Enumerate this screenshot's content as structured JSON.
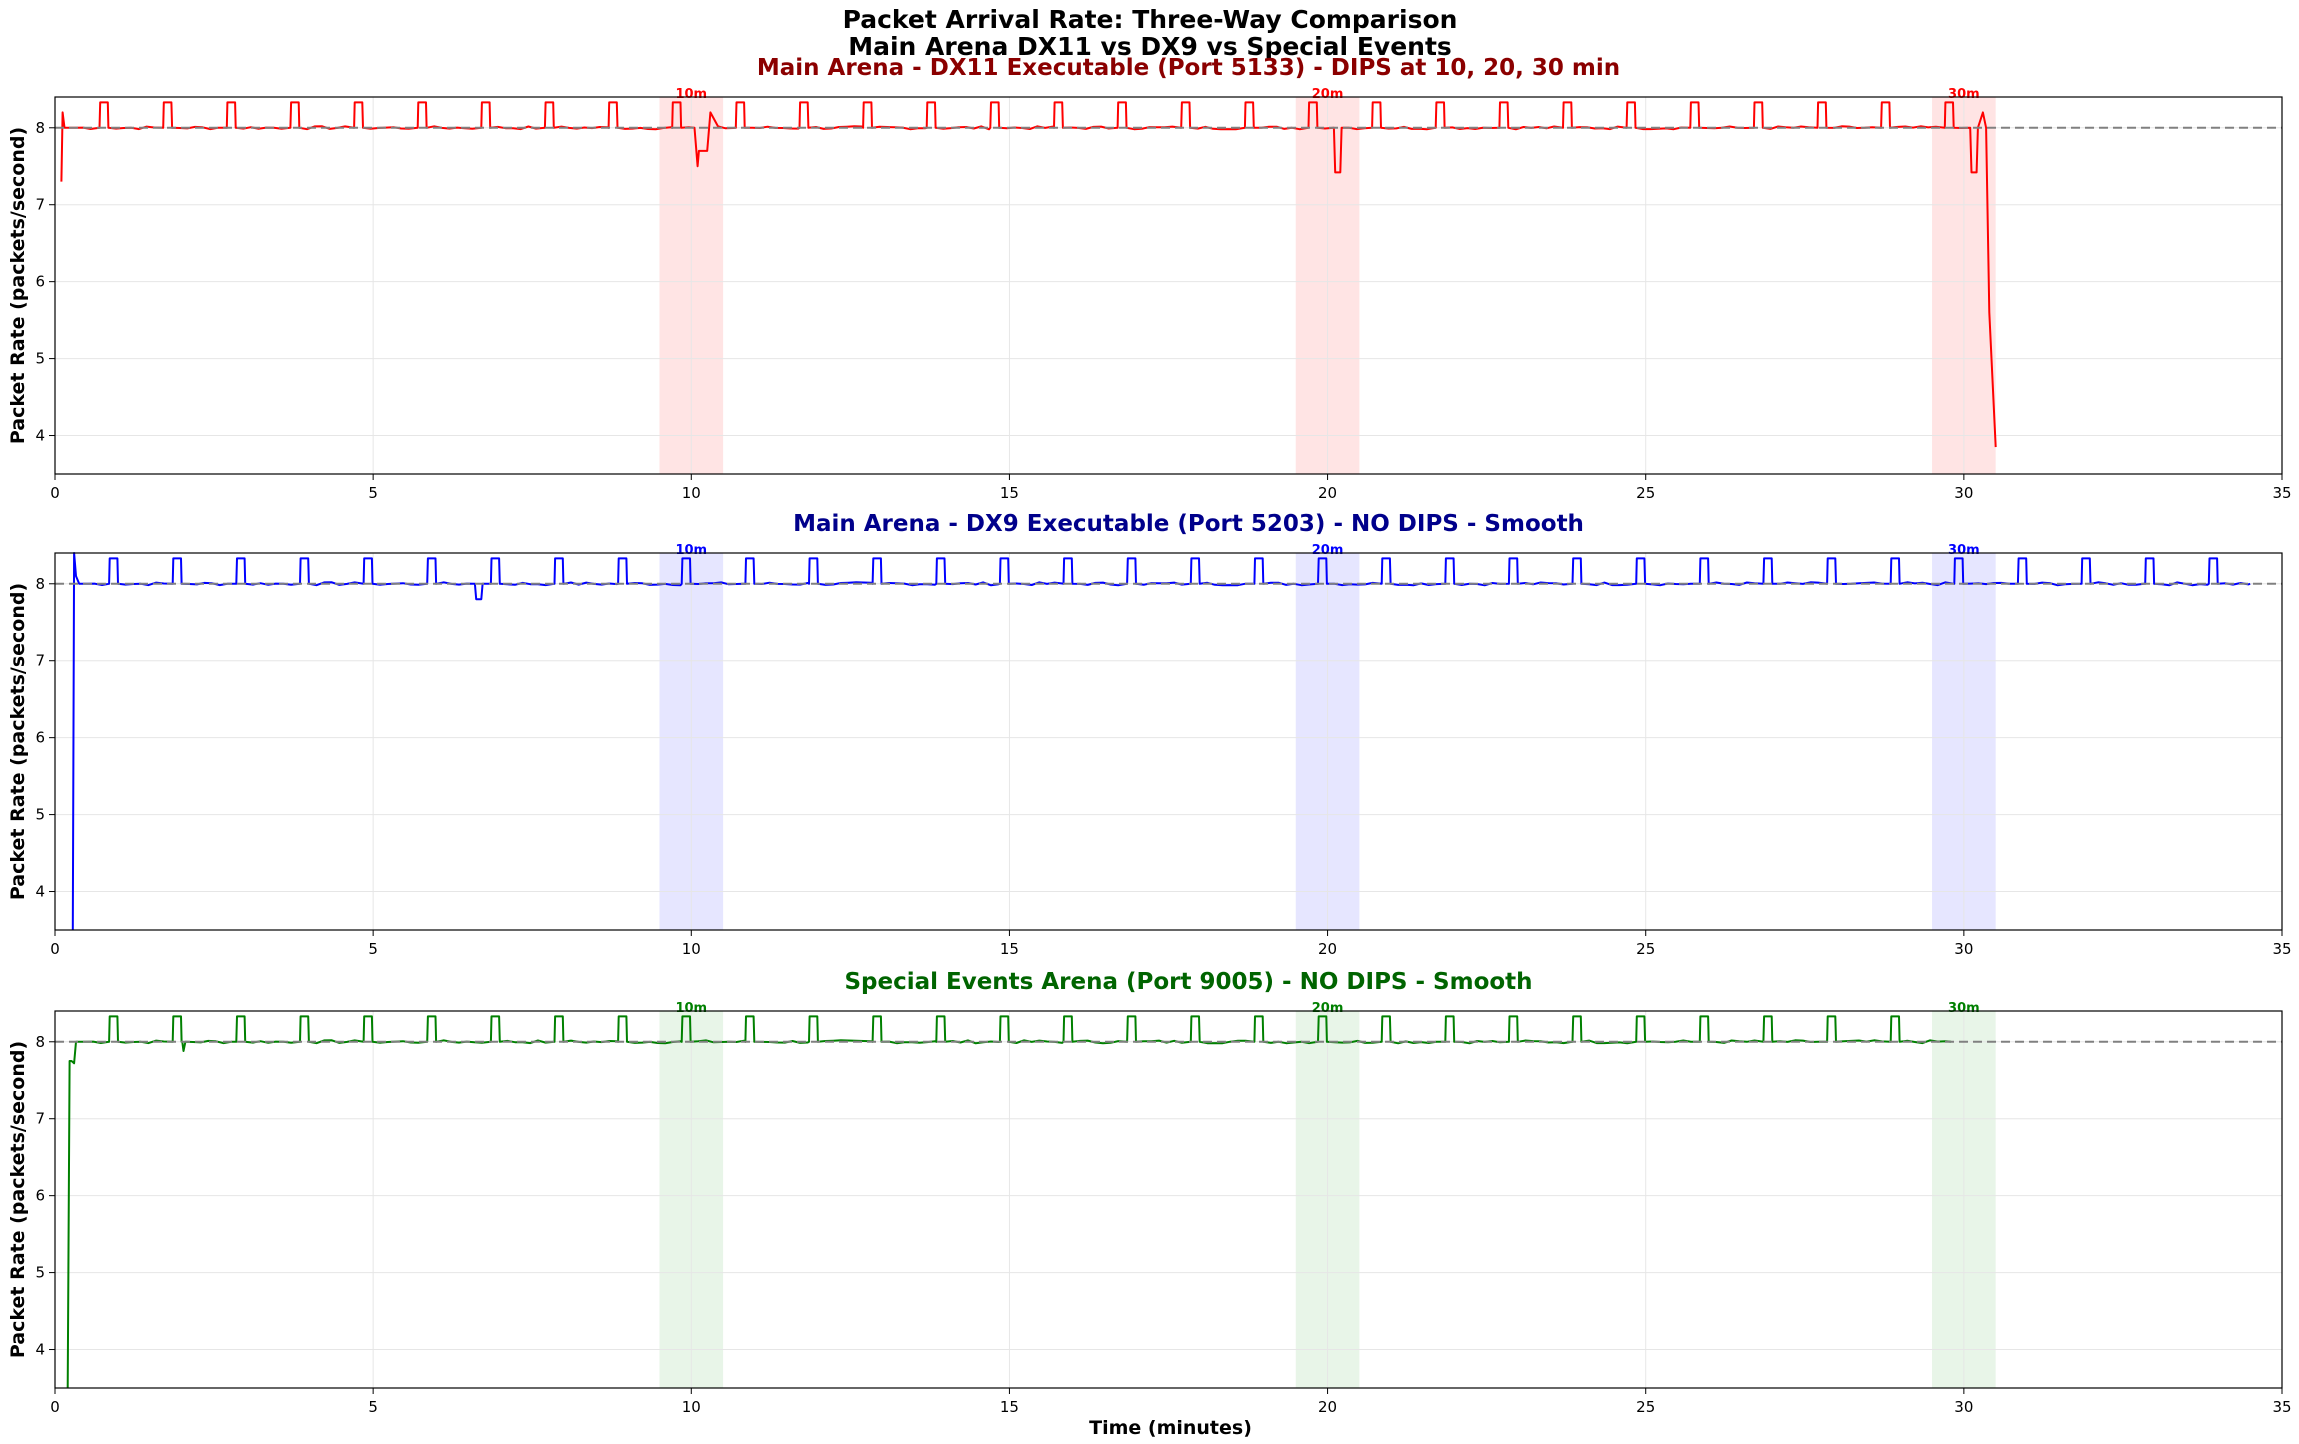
{
  "figure": {
    "suptitle_line1": "Packet Arrival Rate: Three-Way Comparison",
    "suptitle_line2": "Main Arena DX11 vs DX9 vs Special Events",
    "xlabel": "Time (minutes)"
  },
  "chart_data": [
    {
      "type": "line",
      "title": "Main Arena - DX11 Executable (Port 5133) - DIPS at 10, 20, 30 min",
      "title_color": "#8b0000",
      "line_color": "#ff0000",
      "band_color": "#ffe4e4",
      "ylabel": "Packet Rate (packets/second)",
      "xlabel": "",
      "xlim": [
        0,
        35
      ],
      "ylim": [
        3.5,
        8.4
      ],
      "x_ticks": [
        "0",
        "5",
        "10",
        "15",
        "20",
        "25",
        "30",
        "35"
      ],
      "y_ticks": [
        "4",
        "5",
        "6",
        "7",
        "8"
      ],
      "grid": true,
      "reference_line": {
        "y": 8.0,
        "style": "dashed",
        "color": "#808080"
      },
      "baseline": 8.0,
      "spike_level": 8.33,
      "spike_period": 1.0,
      "spike_start": 0.7,
      "spike_width": 0.13,
      "line_end": 30.5,
      "highlight_bands": [
        [
          9.5,
          10.5
        ],
        [
          19.5,
          20.5
        ],
        [
          29.5,
          30.5
        ]
      ],
      "annotations": [
        {
          "x": 10,
          "text": "10m"
        },
        {
          "x": 20,
          "text": "20m"
        },
        {
          "x": 30,
          "text": "30m"
        }
      ],
      "events": [
        {
          "kind": "start",
          "x": [
            0.1,
            0.12,
            0.15,
            0.2
          ],
          "y": [
            7.3,
            8.2,
            8.0,
            8.0
          ]
        },
        {
          "kind": "dip",
          "x": [
            10.05,
            10.1,
            10.12,
            10.25,
            10.3
          ],
          "y": [
            8.0,
            7.5,
            7.7,
            7.7,
            8.2
          ]
        },
        {
          "kind": "dip",
          "x": [
            20.1,
            20.12,
            20.2,
            20.22
          ],
          "y": [
            8.0,
            7.42,
            7.42,
            8.0
          ]
        },
        {
          "kind": "dip",
          "x": [
            30.1,
            30.12,
            30.2,
            30.22
          ],
          "y": [
            8.0,
            7.42,
            7.42,
            8.0
          ]
        },
        {
          "kind": "drop",
          "x": [
            30.3,
            30.35,
            30.4,
            30.5
          ],
          "y": [
            8.2,
            8.0,
            5.6,
            3.85
          ]
        }
      ]
    },
    {
      "type": "line",
      "title": "Main Arena - DX9 Executable (Port 5203) - NO DIPS - Smooth",
      "title_color": "#00008b",
      "line_color": "#0000ff",
      "band_color": "#e6e6ff",
      "ylabel": "Packet Rate (packets/second)",
      "xlabel": "",
      "xlim": [
        0,
        35
      ],
      "ylim": [
        3.5,
        8.4
      ],
      "x_ticks": [
        "0",
        "5",
        "10",
        "15",
        "20",
        "25",
        "30",
        "35"
      ],
      "y_ticks": [
        "4",
        "5",
        "6",
        "7",
        "8"
      ],
      "grid": true,
      "reference_line": {
        "y": 8.0,
        "style": "dashed",
        "color": "#808080"
      },
      "baseline": 8.0,
      "spike_level": 8.33,
      "spike_period": 1.0,
      "spike_start": 0.85,
      "spike_width": 0.13,
      "line_end": 34.5,
      "highlight_bands": [
        [
          9.5,
          10.5
        ],
        [
          19.5,
          20.5
        ],
        [
          29.5,
          30.5
        ]
      ],
      "annotations": [
        {
          "x": 10,
          "text": "10m"
        },
        {
          "x": 20,
          "text": "20m"
        },
        {
          "x": 30,
          "text": "30m"
        }
      ],
      "events": [
        {
          "kind": "start",
          "x": [
            0.28,
            0.3,
            0.33,
            0.38
          ],
          "y": [
            3.5,
            8.4,
            8.1,
            8.0
          ]
        },
        {
          "kind": "dip",
          "x": [
            6.6,
            6.62,
            6.7,
            6.72
          ],
          "y": [
            8.0,
            7.8,
            7.8,
            8.0
          ]
        }
      ]
    },
    {
      "type": "line",
      "title": "Special Events Arena (Port 9005) - NO DIPS - Smooth",
      "title_color": "#006400",
      "line_color": "#008000",
      "band_color": "#e8f5e8",
      "ylabel": "Packet Rate (packets/second)",
      "xlabel": "Time (minutes)",
      "xlim": [
        0,
        35
      ],
      "ylim": [
        3.5,
        8.4
      ],
      "x_ticks": [
        "0",
        "5",
        "10",
        "15",
        "20",
        "25",
        "30",
        "35"
      ],
      "y_ticks": [
        "4",
        "5",
        "6",
        "7",
        "8"
      ],
      "grid": true,
      "reference_line": {
        "y": 8.0,
        "style": "dashed",
        "color": "#808080"
      },
      "baseline": 8.0,
      "spike_level": 8.33,
      "spike_period": 1.0,
      "spike_start": 0.85,
      "spike_width": 0.13,
      "line_end": 29.8,
      "highlight_bands": [
        [
          9.5,
          10.5
        ],
        [
          19.5,
          20.5
        ],
        [
          29.5,
          30.5
        ]
      ],
      "annotations": [
        {
          "x": 10,
          "text": "10m"
        },
        {
          "x": 20,
          "text": "20m"
        },
        {
          "x": 30,
          "text": "30m"
        }
      ],
      "events": [
        {
          "kind": "start",
          "x": [
            0.2,
            0.23,
            0.26,
            0.3,
            0.33,
            0.36
          ],
          "y": [
            3.5,
            7.75,
            7.75,
            7.72,
            8.0,
            8.0
          ]
        },
        {
          "kind": "dip",
          "x": [
            2.0,
            2.02,
            2.05
          ],
          "y": [
            8.0,
            7.88,
            8.0
          ]
        }
      ]
    }
  ]
}
